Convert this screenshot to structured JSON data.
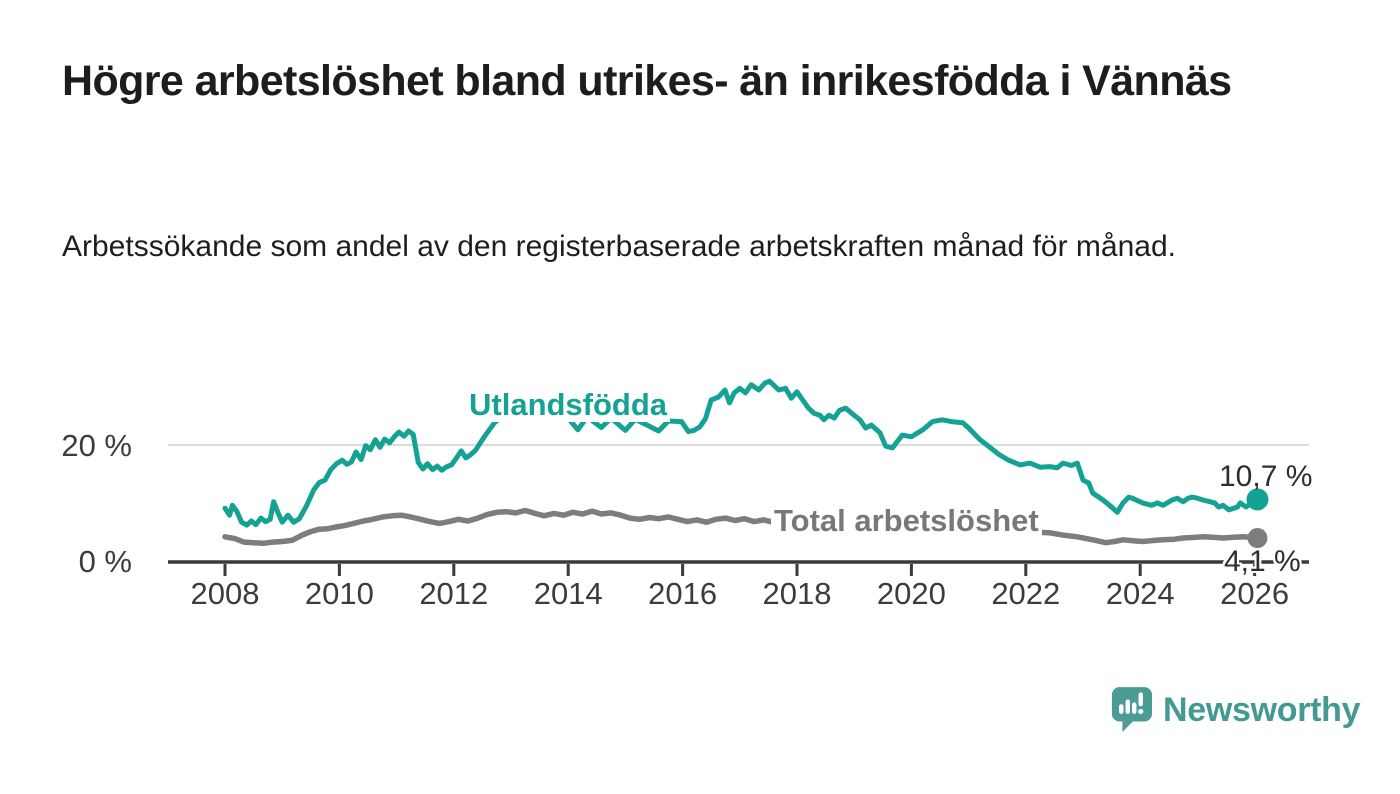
{
  "header": {
    "title": "Högre arbetslöshet bland utrikes- än inrikesfödda i Vännäs",
    "subtitle": "Arbetssökande som andel av den registerbaserade arbetskraften månad för månad."
  },
  "chart_data": {
    "type": "line",
    "title": "Högre arbetslöshet bland utrikes- än inrikesfödda i Vännäs",
    "subtitle": "Arbetssökande som andel av den registerbaserade arbetskraften månad för månad.",
    "unit": "%",
    "grid": "horizontal, only at 20 %",
    "legend": "inline labels next to lines",
    "xlim": [
      2007.9,
      2026.3
    ],
    "ylim": [
      0,
      32
    ],
    "x_ticks": [
      {
        "year": 2008,
        "label": "2008"
      },
      {
        "year": 2010,
        "label": "2010"
      },
      {
        "year": 2012,
        "label": "2012"
      },
      {
        "year": 2014,
        "label": "2014"
      },
      {
        "year": 2016,
        "label": "2016"
      },
      {
        "year": 2018,
        "label": "2018"
      },
      {
        "year": 2020,
        "label": "2020"
      },
      {
        "year": 2022,
        "label": "2022"
      },
      {
        "year": 2024,
        "label": "2024"
      },
      {
        "year": 2026,
        "label": "2026"
      }
    ],
    "y_ticks": [
      {
        "value": 20,
        "label": "20 %"
      },
      {
        "value": 0,
        "label": "0 %"
      }
    ],
    "colors": {
      "axis": "#3a3a3a",
      "gridline": "#dcdcdc",
      "tick_label": "#3c3c3c"
    },
    "series": [
      {
        "name": "Utlandsfödda",
        "color": "#14a294",
        "end_value": 10.7,
        "end_label": "10,7 %",
        "points": [
          [
            2008.0,
            9.2
          ],
          [
            2008.08,
            8.0
          ],
          [
            2008.13,
            9.7
          ],
          [
            2008.21,
            8.6
          ],
          [
            2008.29,
            6.8
          ],
          [
            2008.38,
            6.3
          ],
          [
            2008.46,
            7.0
          ],
          [
            2008.54,
            6.4
          ],
          [
            2008.63,
            7.5
          ],
          [
            2008.71,
            6.9
          ],
          [
            2008.79,
            7.3
          ],
          [
            2008.85,
            10.3
          ],
          [
            2008.92,
            8.6
          ],
          [
            2009.0,
            6.8
          ],
          [
            2009.1,
            8.0
          ],
          [
            2009.2,
            6.8
          ],
          [
            2009.3,
            7.4
          ],
          [
            2009.42,
            9.5
          ],
          [
            2009.55,
            12.3
          ],
          [
            2009.65,
            13.6
          ],
          [
            2009.75,
            14.0
          ],
          [
            2009.85,
            15.8
          ],
          [
            2009.95,
            16.8
          ],
          [
            2010.05,
            17.4
          ],
          [
            2010.13,
            16.7
          ],
          [
            2010.21,
            17.1
          ],
          [
            2010.29,
            18.8
          ],
          [
            2010.38,
            17.5
          ],
          [
            2010.46,
            19.9
          ],
          [
            2010.54,
            19.2
          ],
          [
            2010.63,
            20.9
          ],
          [
            2010.71,
            19.6
          ],
          [
            2010.79,
            21.0
          ],
          [
            2010.88,
            20.4
          ],
          [
            2010.96,
            21.4
          ],
          [
            2011.04,
            22.2
          ],
          [
            2011.13,
            21.5
          ],
          [
            2011.21,
            22.4
          ],
          [
            2011.29,
            21.8
          ],
          [
            2011.38,
            17.0
          ],
          [
            2011.46,
            15.9
          ],
          [
            2011.54,
            16.8
          ],
          [
            2011.63,
            15.8
          ],
          [
            2011.71,
            16.4
          ],
          [
            2011.79,
            15.7
          ],
          [
            2011.88,
            16.3
          ],
          [
            2011.96,
            16.6
          ],
          [
            2012.04,
            17.7
          ],
          [
            2012.13,
            19.0
          ],
          [
            2012.21,
            17.8
          ],
          [
            2012.29,
            18.3
          ],
          [
            2012.38,
            19.1
          ],
          [
            2012.46,
            20.3
          ],
          [
            2012.54,
            21.5
          ],
          [
            2012.63,
            22.7
          ],
          [
            2012.71,
            23.8
          ],
          [
            2012.83,
            24.8
          ],
          [
            2013.0,
            25.4
          ],
          [
            2013.2,
            25.9
          ],
          [
            2013.4,
            25.2
          ],
          [
            2013.6,
            25.7
          ],
          [
            2013.8,
            25.0
          ],
          [
            2014.0,
            24.6
          ],
          [
            2014.17,
            22.6
          ],
          [
            2014.33,
            24.8
          ],
          [
            2014.58,
            23.0
          ],
          [
            2014.75,
            24.6
          ],
          [
            2015.0,
            22.5
          ],
          [
            2015.17,
            24.4
          ],
          [
            2015.42,
            23.2
          ],
          [
            2015.58,
            22.4
          ],
          [
            2015.75,
            24.1
          ],
          [
            2015.98,
            24.0
          ],
          [
            2016.1,
            22.3
          ],
          [
            2016.2,
            22.5
          ],
          [
            2016.3,
            23.1
          ],
          [
            2016.4,
            24.5
          ],
          [
            2016.5,
            27.7
          ],
          [
            2016.63,
            28.2
          ],
          [
            2016.74,
            29.4
          ],
          [
            2016.82,
            27.2
          ],
          [
            2016.9,
            28.9
          ],
          [
            2017.0,
            29.7
          ],
          [
            2017.1,
            28.9
          ],
          [
            2017.2,
            30.3
          ],
          [
            2017.33,
            29.4
          ],
          [
            2017.44,
            30.6
          ],
          [
            2017.52,
            30.9
          ],
          [
            2017.68,
            29.4
          ],
          [
            2017.8,
            29.7
          ],
          [
            2017.9,
            28.0
          ],
          [
            2018.0,
            29.1
          ],
          [
            2018.1,
            27.7
          ],
          [
            2018.2,
            26.3
          ],
          [
            2018.3,
            25.4
          ],
          [
            2018.4,
            25.1
          ],
          [
            2018.47,
            24.3
          ],
          [
            2018.56,
            25.1
          ],
          [
            2018.65,
            24.6
          ],
          [
            2018.74,
            25.9
          ],
          [
            2018.85,
            26.3
          ],
          [
            2018.96,
            25.4
          ],
          [
            2019.1,
            24.3
          ],
          [
            2019.2,
            22.9
          ],
          [
            2019.3,
            23.4
          ],
          [
            2019.45,
            22.1
          ],
          [
            2019.55,
            19.8
          ],
          [
            2019.67,
            19.5
          ],
          [
            2019.84,
            21.7
          ],
          [
            2020.0,
            21.4
          ],
          [
            2020.2,
            22.6
          ],
          [
            2020.37,
            24.0
          ],
          [
            2020.54,
            24.3
          ],
          [
            2020.7,
            24.0
          ],
          [
            2020.9,
            23.8
          ],
          [
            2021.0,
            22.9
          ],
          [
            2021.2,
            20.9
          ],
          [
            2021.36,
            19.7
          ],
          [
            2021.54,
            18.3
          ],
          [
            2021.7,
            17.4
          ],
          [
            2021.9,
            16.6
          ],
          [
            2022.07,
            16.9
          ],
          [
            2022.25,
            16.2
          ],
          [
            2022.42,
            16.3
          ],
          [
            2022.55,
            16.1
          ],
          [
            2022.65,
            16.9
          ],
          [
            2022.8,
            16.5
          ],
          [
            2022.9,
            16.9
          ],
          [
            2023.0,
            14.0
          ],
          [
            2023.1,
            13.5
          ],
          [
            2023.17,
            11.8
          ],
          [
            2023.35,
            10.6
          ],
          [
            2023.5,
            9.4
          ],
          [
            2023.6,
            8.5
          ],
          [
            2023.7,
            10.1
          ],
          [
            2023.8,
            11.1
          ],
          [
            2023.86,
            10.9
          ],
          [
            2024.04,
            10.1
          ],
          [
            2024.2,
            9.7
          ],
          [
            2024.3,
            10.1
          ],
          [
            2024.4,
            9.7
          ],
          [
            2024.56,
            10.6
          ],
          [
            2024.65,
            10.9
          ],
          [
            2024.75,
            10.3
          ],
          [
            2024.84,
            10.9
          ],
          [
            2024.9,
            11.1
          ],
          [
            2025.0,
            10.9
          ],
          [
            2025.1,
            10.6
          ],
          [
            2025.3,
            10.1
          ],
          [
            2025.37,
            9.4
          ],
          [
            2025.45,
            9.7
          ],
          [
            2025.55,
            8.9
          ],
          [
            2025.7,
            9.4
          ],
          [
            2025.75,
            10.1
          ],
          [
            2025.85,
            9.4
          ],
          [
            2025.95,
            10.1
          ],
          [
            2026.05,
            10.7
          ]
        ]
      },
      {
        "name": "Total arbetslöshet",
        "color": "#7d7d7d",
        "end_value": 4.1,
        "end_label": "4,1 %",
        "points": [
          [
            2008.0,
            4.3
          ],
          [
            2008.17,
            4.0
          ],
          [
            2008.33,
            3.4
          ],
          [
            2008.5,
            3.3
          ],
          [
            2008.67,
            3.2
          ],
          [
            2008.83,
            3.4
          ],
          [
            2009.0,
            3.5
          ],
          [
            2009.17,
            3.7
          ],
          [
            2009.35,
            4.6
          ],
          [
            2009.5,
            5.2
          ],
          [
            2009.65,
            5.6
          ],
          [
            2009.8,
            5.7
          ],
          [
            2009.95,
            6.0
          ],
          [
            2010.08,
            6.2
          ],
          [
            2010.25,
            6.6
          ],
          [
            2010.42,
            7.0
          ],
          [
            2010.58,
            7.3
          ],
          [
            2010.75,
            7.7
          ],
          [
            2010.92,
            7.9
          ],
          [
            2011.08,
            8.0
          ],
          [
            2011.25,
            7.7
          ],
          [
            2011.42,
            7.3
          ],
          [
            2011.58,
            6.9
          ],
          [
            2011.75,
            6.6
          ],
          [
            2011.92,
            6.9
          ],
          [
            2012.08,
            7.3
          ],
          [
            2012.25,
            7.0
          ],
          [
            2012.42,
            7.5
          ],
          [
            2012.58,
            8.1
          ],
          [
            2012.75,
            8.5
          ],
          [
            2012.92,
            8.6
          ],
          [
            2013.08,
            8.4
          ],
          [
            2013.25,
            8.8
          ],
          [
            2013.42,
            8.3
          ],
          [
            2013.58,
            7.9
          ],
          [
            2013.75,
            8.3
          ],
          [
            2013.92,
            8.0
          ],
          [
            2014.08,
            8.5
          ],
          [
            2014.25,
            8.2
          ],
          [
            2014.42,
            8.7
          ],
          [
            2014.58,
            8.2
          ],
          [
            2014.75,
            8.4
          ],
          [
            2014.92,
            8.0
          ],
          [
            2015.08,
            7.5
          ],
          [
            2015.25,
            7.3
          ],
          [
            2015.42,
            7.6
          ],
          [
            2015.58,
            7.4
          ],
          [
            2015.75,
            7.7
          ],
          [
            2015.92,
            7.3
          ],
          [
            2016.08,
            6.9
          ],
          [
            2016.25,
            7.2
          ],
          [
            2016.42,
            6.8
          ],
          [
            2016.58,
            7.3
          ],
          [
            2016.75,
            7.5
          ],
          [
            2016.92,
            7.1
          ],
          [
            2017.08,
            7.4
          ],
          [
            2017.25,
            6.9
          ],
          [
            2017.42,
            7.2
          ],
          [
            2017.58,
            6.8
          ],
          [
            2017.75,
            6.6
          ],
          [
            2017.92,
            6.4
          ],
          [
            2018.17,
            6.1
          ],
          [
            2018.42,
            6.0
          ],
          [
            2018.67,
            5.9
          ],
          [
            2018.92,
            6.0
          ],
          [
            2019.17,
            5.8
          ],
          [
            2019.42,
            5.7
          ],
          [
            2019.67,
            5.9
          ],
          [
            2019.92,
            6.1
          ],
          [
            2020.17,
            6.4
          ],
          [
            2020.42,
            6.6
          ],
          [
            2020.67,
            6.4
          ],
          [
            2020.92,
            6.2
          ],
          [
            2021.17,
            5.9
          ],
          [
            2021.42,
            5.6
          ],
          [
            2021.67,
            5.4
          ],
          [
            2021.92,
            5.2
          ],
          [
            2022.17,
            5.1
          ],
          [
            2022.42,
            5.0
          ],
          [
            2022.65,
            4.6
          ],
          [
            2022.9,
            4.3
          ],
          [
            2023.17,
            3.8
          ],
          [
            2023.4,
            3.3
          ],
          [
            2023.55,
            3.5
          ],
          [
            2023.7,
            3.8
          ],
          [
            2023.9,
            3.6
          ],
          [
            2024.05,
            3.5
          ],
          [
            2024.25,
            3.7
          ],
          [
            2024.4,
            3.8
          ],
          [
            2024.6,
            3.9
          ],
          [
            2024.75,
            4.1
          ],
          [
            2024.95,
            4.2
          ],
          [
            2025.1,
            4.3
          ],
          [
            2025.3,
            4.2
          ],
          [
            2025.45,
            4.1
          ],
          [
            2025.6,
            4.2
          ],
          [
            2025.8,
            4.3
          ],
          [
            2025.95,
            4.2
          ],
          [
            2026.05,
            4.1
          ]
        ]
      }
    ]
  },
  "footer": {
    "brand": "Newsworthy",
    "brand_color": "#429a92",
    "icon": "speech-bubble-bar-chart-icon"
  }
}
